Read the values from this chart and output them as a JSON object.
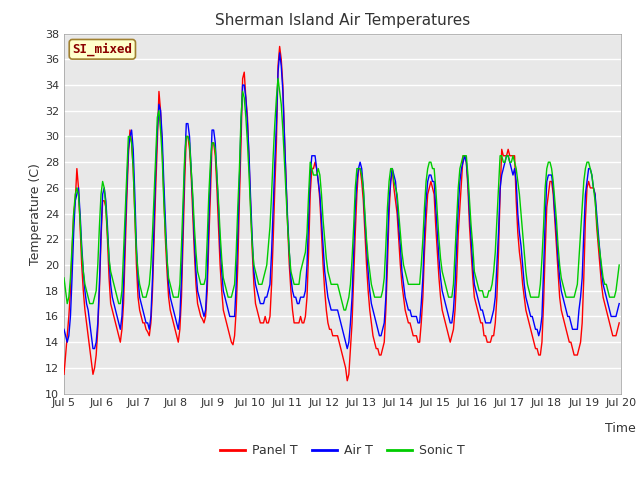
{
  "title": "Sherman Island Air Temperatures",
  "xlabel": "Time",
  "ylabel": "Temperature (C)",
  "ylim": [
    10,
    38
  ],
  "yticks": [
    10,
    12,
    14,
    16,
    18,
    20,
    22,
    24,
    26,
    28,
    30,
    32,
    34,
    36,
    38
  ],
  "xtick_labels": [
    "Jul 5",
    "Jul 6",
    "Jul 7",
    "Jul 8",
    "Jul 9",
    "Jul 10",
    "Jul 11",
    "Jul 12",
    "Jul 13",
    "Jul 14",
    "Jul 15",
    "Jul 16",
    "Jul 17",
    "Jul 18",
    "Jul 19",
    "Jul 20"
  ],
  "xtick_days": [
    5,
    6,
    7,
    8,
    9,
    10,
    11,
    12,
    13,
    14,
    15,
    16,
    17,
    18,
    19,
    20
  ],
  "label_box_text": "SI_mixed",
  "label_box_color": "#ffffcc",
  "label_box_edge_color": "#a08030",
  "label_box_text_color": "#8b0000",
  "bg_color": "#e8e8e8",
  "panel_t_color": "#ff0000",
  "air_t_color": "#0000ff",
  "sonic_t_color": "#00cc00",
  "legend_entries": [
    "Panel T",
    "Air T",
    "Sonic T"
  ],
  "linewidth": 1.0,
  "panel_t": [
    11.5,
    13.0,
    14.5,
    16.0,
    18.0,
    21.0,
    24.0,
    25.0,
    27.5,
    26.0,
    23.0,
    20.0,
    18.0,
    16.5,
    15.5,
    14.5,
    13.5,
    12.5,
    11.5,
    12.0,
    13.0,
    15.0,
    18.0,
    22.0,
    25.0,
    25.0,
    24.5,
    22.0,
    19.0,
    17.0,
    16.5,
    16.0,
    15.5,
    15.0,
    14.5,
    14.0,
    15.0,
    17.0,
    21.0,
    25.0,
    28.5,
    30.5,
    29.5,
    27.5,
    24.0,
    20.0,
    17.5,
    16.5,
    16.0,
    15.5,
    15.5,
    15.0,
    14.8,
    14.5,
    15.5,
    18.0,
    22.0,
    26.0,
    29.5,
    33.5,
    32.0,
    29.0,
    25.5,
    22.0,
    19.5,
    17.5,
    16.5,
    16.0,
    15.5,
    15.0,
    14.5,
    14.0,
    15.0,
    17.5,
    22.0,
    26.5,
    30.0,
    30.0,
    29.0,
    27.0,
    24.0,
    21.0,
    18.5,
    17.0,
    16.5,
    16.0,
    15.8,
    15.5,
    16.0,
    18.0,
    22.0,
    25.5,
    29.5,
    29.5,
    28.5,
    26.0,
    23.0,
    20.0,
    18.0,
    16.5,
    16.0,
    15.5,
    15.0,
    14.5,
    14.0,
    13.8,
    14.5,
    16.5,
    20.0,
    25.0,
    29.5,
    34.5,
    35.0,
    33.0,
    31.5,
    28.0,
    24.5,
    21.0,
    18.5,
    17.0,
    16.5,
    16.0,
    15.5,
    15.5,
    15.5,
    16.0,
    15.5,
    15.5,
    16.0,
    18.5,
    22.0,
    26.0,
    29.5,
    35.5,
    37.0,
    36.0,
    34.0,
    30.0,
    26.5,
    23.0,
    20.0,
    18.0,
    16.5,
    15.5,
    15.5,
    15.5,
    15.5,
    16.0,
    15.5,
    15.5,
    16.0,
    17.5,
    21.0,
    25.5,
    27.5,
    27.5,
    28.0,
    27.5,
    26.5,
    25.0,
    22.5,
    20.0,
    18.0,
    16.5,
    15.5,
    15.0,
    15.0,
    14.5,
    14.5,
    14.5,
    14.5,
    14.0,
    13.5,
    13.0,
    12.5,
    12.0,
    11.0,
    11.5,
    13.5,
    15.5,
    19.0,
    22.5,
    25.5,
    27.5,
    27.5,
    26.5,
    25.0,
    22.5,
    20.0,
    18.0,
    16.5,
    15.5,
    14.5,
    14.0,
    13.5,
    13.5,
    13.0,
    13.0,
    13.5,
    14.0,
    16.5,
    20.0,
    24.0,
    26.5,
    27.5,
    26.0,
    25.0,
    24.0,
    22.0,
    20.0,
    18.5,
    17.5,
    16.5,
    16.0,
    15.5,
    15.5,
    15.0,
    14.5,
    14.5,
    14.5,
    14.0,
    14.0,
    15.5,
    17.5,
    21.0,
    23.5,
    25.5,
    26.0,
    26.5,
    26.0,
    25.5,
    23.0,
    21.0,
    19.0,
    17.5,
    16.5,
    16.0,
    15.5,
    15.0,
    14.5,
    14.0,
    14.5,
    15.0,
    16.5,
    19.0,
    22.5,
    24.5,
    26.5,
    28.5,
    28.5,
    28.0,
    26.0,
    23.0,
    21.0,
    19.0,
    17.5,
    17.0,
    16.5,
    16.0,
    15.5,
    15.5,
    14.5,
    14.5,
    14.0,
    14.0,
    14.0,
    14.5,
    14.5,
    15.5,
    17.5,
    21.0,
    25.5,
    29.0,
    28.5,
    28.5,
    28.5,
    29.0,
    28.5,
    28.5,
    28.5,
    28.5,
    25.0,
    22.5,
    21.0,
    20.0,
    18.5,
    17.5,
    16.5,
    16.0,
    15.5,
    15.0,
    14.5,
    14.0,
    13.5,
    13.5,
    13.0,
    13.0,
    14.0,
    17.0,
    21.0,
    24.5,
    25.5,
    26.5,
    26.5,
    25.5,
    23.5,
    21.5,
    19.5,
    17.5,
    16.5,
    16.0,
    15.5,
    15.0,
    14.5,
    14.0,
    14.0,
    13.5,
    13.0,
    13.0,
    13.0,
    13.5,
    14.0,
    15.5,
    19.0,
    23.5,
    26.0,
    26.5,
    26.0,
    26.0,
    26.0,
    25.5,
    23.0,
    21.5,
    20.0,
    18.5,
    17.5,
    17.0,
    16.5,
    16.0,
    15.5,
    15.0,
    14.5,
    14.5,
    14.5,
    15.0,
    15.5
  ],
  "air_t": [
    15.0,
    14.5,
    14.0,
    14.5,
    16.0,
    19.0,
    22.5,
    25.0,
    25.5,
    26.0,
    24.0,
    21.5,
    19.5,
    18.0,
    17.0,
    16.5,
    15.5,
    14.5,
    13.5,
    13.5,
    14.0,
    15.5,
    18.5,
    22.5,
    25.5,
    26.0,
    25.0,
    23.0,
    20.5,
    18.5,
    17.5,
    17.0,
    16.5,
    16.0,
    15.5,
    15.0,
    16.0,
    18.5,
    22.5,
    26.0,
    29.0,
    30.0,
    30.5,
    29.0,
    25.5,
    21.5,
    19.0,
    17.5,
    17.0,
    16.5,
    16.0,
    15.5,
    15.5,
    15.0,
    16.0,
    19.0,
    23.5,
    27.5,
    30.5,
    32.5,
    32.0,
    30.0,
    26.5,
    23.5,
    20.5,
    18.5,
    17.5,
    17.0,
    16.5,
    16.0,
    15.5,
    15.0,
    16.0,
    19.0,
    23.5,
    28.0,
    31.0,
    31.0,
    30.0,
    27.5,
    25.0,
    22.0,
    19.5,
    18.0,
    17.5,
    17.0,
    16.5,
    16.0,
    16.5,
    19.0,
    23.5,
    27.0,
    30.5,
    30.5,
    29.5,
    27.0,
    24.5,
    21.5,
    19.5,
    18.0,
    17.5,
    17.0,
    16.5,
    16.0,
    16.0,
    16.0,
    16.0,
    18.5,
    22.5,
    26.5,
    31.0,
    34.0,
    34.0,
    33.0,
    31.0,
    28.5,
    25.0,
    22.0,
    19.5,
    18.5,
    18.0,
    17.5,
    17.0,
    17.0,
    17.0,
    17.5,
    17.5,
    18.0,
    18.5,
    21.0,
    24.5,
    28.0,
    31.0,
    35.0,
    36.5,
    35.5,
    33.5,
    30.0,
    26.5,
    23.5,
    21.0,
    19.0,
    18.0,
    17.5,
    17.5,
    17.0,
    17.0,
    17.5,
    17.5,
    17.5,
    18.0,
    20.0,
    23.5,
    27.0,
    28.5,
    28.5,
    28.5,
    27.5,
    26.5,
    25.5,
    23.5,
    21.5,
    19.5,
    18.5,
    17.5,
    17.0,
    16.5,
    16.5,
    16.5,
    16.5,
    16.5,
    16.0,
    15.5,
    15.0,
    14.5,
    14.0,
    13.5,
    14.0,
    15.5,
    17.5,
    21.0,
    24.5,
    26.5,
    27.5,
    28.0,
    27.5,
    26.0,
    23.5,
    21.5,
    19.5,
    18.0,
    17.0,
    16.5,
    16.0,
    15.5,
    15.0,
    14.5,
    14.5,
    15.0,
    15.5,
    17.5,
    21.5,
    25.0,
    26.5,
    27.5,
    27.0,
    26.5,
    25.0,
    23.0,
    21.5,
    19.5,
    18.5,
    17.5,
    17.0,
    16.5,
    16.5,
    16.0,
    16.0,
    16.0,
    16.0,
    15.5,
    15.5,
    17.0,
    19.0,
    22.5,
    25.0,
    26.5,
    27.0,
    27.0,
    26.5,
    26.5,
    24.5,
    22.5,
    20.5,
    19.0,
    18.0,
    17.5,
    17.0,
    16.5,
    16.0,
    15.5,
    15.5,
    16.5,
    18.5,
    21.5,
    24.5,
    26.5,
    27.5,
    28.0,
    28.5,
    28.0,
    26.5,
    24.0,
    22.0,
    20.0,
    18.5,
    18.0,
    17.5,
    17.0,
    16.5,
    16.5,
    16.0,
    15.5,
    15.5,
    15.5,
    15.5,
    16.0,
    16.5,
    17.5,
    20.0,
    22.5,
    26.0,
    27.0,
    27.5,
    28.0,
    28.5,
    28.5,
    28.0,
    27.5,
    27.0,
    27.5,
    26.5,
    24.0,
    22.5,
    21.5,
    20.0,
    18.5,
    17.5,
    17.0,
    16.5,
    16.0,
    16.0,
    15.5,
    15.0,
    15.0,
    14.5,
    15.0,
    16.0,
    19.5,
    23.5,
    26.5,
    27.0,
    27.0,
    27.0,
    26.0,
    24.0,
    22.5,
    20.5,
    19.0,
    18.0,
    17.5,
    17.0,
    16.5,
    16.0,
    16.0,
    15.5,
    15.0,
    15.0,
    15.0,
    15.0,
    16.5,
    17.5,
    19.0,
    22.5,
    25.5,
    26.5,
    27.5,
    27.5,
    27.0,
    26.0,
    25.5,
    24.0,
    22.5,
    21.0,
    19.5,
    18.5,
    18.0,
    17.5,
    17.0,
    16.5,
    16.0,
    16.0,
    16.0,
    16.0,
    16.5,
    17.0
  ],
  "sonic_t": [
    19.0,
    18.0,
    17.0,
    17.5,
    19.0,
    21.5,
    24.0,
    25.5,
    26.0,
    25.5,
    23.5,
    21.0,
    19.5,
    18.5,
    18.0,
    17.5,
    17.0,
    17.0,
    17.0,
    17.5,
    18.0,
    20.0,
    23.0,
    25.5,
    26.5,
    26.0,
    24.5,
    22.5,
    20.5,
    19.5,
    19.0,
    18.5,
    18.0,
    17.5,
    17.0,
    17.0,
    18.0,
    21.0,
    24.0,
    27.0,
    30.0,
    30.0,
    29.5,
    27.5,
    24.0,
    21.0,
    19.5,
    18.5,
    18.0,
    17.5,
    17.5,
    17.5,
    18.0,
    18.5,
    20.0,
    22.5,
    25.5,
    28.5,
    31.5,
    32.0,
    30.5,
    28.5,
    25.0,
    22.5,
    20.5,
    19.0,
    18.5,
    18.0,
    17.5,
    17.5,
    17.5,
    17.5,
    18.5,
    21.5,
    25.0,
    28.5,
    30.0,
    30.0,
    29.5,
    27.5,
    25.5,
    23.0,
    21.0,
    19.5,
    19.0,
    18.5,
    18.5,
    18.5,
    19.0,
    22.0,
    25.5,
    28.0,
    29.5,
    29.5,
    29.0,
    27.0,
    25.0,
    22.5,
    20.5,
    19.0,
    18.5,
    18.0,
    17.5,
    17.5,
    17.5,
    18.0,
    18.5,
    21.0,
    24.5,
    27.5,
    31.5,
    33.5,
    33.0,
    31.5,
    29.5,
    27.0,
    24.0,
    21.5,
    20.0,
    19.5,
    19.0,
    18.5,
    18.5,
    18.5,
    19.0,
    19.5,
    20.0,
    21.5,
    23.0,
    25.5,
    28.5,
    31.0,
    33.0,
    34.5,
    33.5,
    32.5,
    30.5,
    28.0,
    25.5,
    23.0,
    21.0,
    19.5,
    19.0,
    18.5,
    18.5,
    18.5,
    18.5,
    19.5,
    20.0,
    20.5,
    21.0,
    22.5,
    25.5,
    28.0,
    27.5,
    27.0,
    27.0,
    27.0,
    27.5,
    27.0,
    25.5,
    23.5,
    22.0,
    20.5,
    19.5,
    19.0,
    18.5,
    18.5,
    18.5,
    18.5,
    18.5,
    18.0,
    17.5,
    17.0,
    16.5,
    16.5,
    17.0,
    17.5,
    18.5,
    20.5,
    23.0,
    26.0,
    27.5,
    27.5,
    27.5,
    27.0,
    26.0,
    24.0,
    22.0,
    20.5,
    19.5,
    18.5,
    18.0,
    17.5,
    17.5,
    17.5,
    17.5,
    17.5,
    18.0,
    19.0,
    21.5,
    24.5,
    26.5,
    27.5,
    27.5,
    26.5,
    26.0,
    25.5,
    24.0,
    22.5,
    21.0,
    20.0,
    19.5,
    19.0,
    18.5,
    18.5,
    18.5,
    18.5,
    18.5,
    18.5,
    18.5,
    18.5,
    20.0,
    22.0,
    24.5,
    26.5,
    27.5,
    28.0,
    28.0,
    27.5,
    27.5,
    26.0,
    24.0,
    22.0,
    20.5,
    19.5,
    19.0,
    18.5,
    18.0,
    17.5,
    17.5,
    17.5,
    18.5,
    21.0,
    23.5,
    26.0,
    27.5,
    28.0,
    28.5,
    28.5,
    28.5,
    27.0,
    25.0,
    23.0,
    21.5,
    19.5,
    19.0,
    18.5,
    18.0,
    18.0,
    18.0,
    17.5,
    17.5,
    17.5,
    18.0,
    18.0,
    18.5,
    19.5,
    21.0,
    23.5,
    26.0,
    28.5,
    28.5,
    28.0,
    28.0,
    28.5,
    28.5,
    28.0,
    28.0,
    28.5,
    28.0,
    27.5,
    26.5,
    25.5,
    24.0,
    22.5,
    21.0,
    19.5,
    18.5,
    18.0,
    17.5,
    17.5,
    17.5,
    17.5,
    17.5,
    17.5,
    18.5,
    20.5,
    23.0,
    26.0,
    27.5,
    28.0,
    28.0,
    27.5,
    26.5,
    25.0,
    23.5,
    21.5,
    20.0,
    19.0,
    18.5,
    18.0,
    17.5,
    17.5,
    17.5,
    17.5,
    17.5,
    17.5,
    18.0,
    18.5,
    20.5,
    22.5,
    24.5,
    26.5,
    27.5,
    28.0,
    28.0,
    27.5,
    27.0,
    26.0,
    25.0,
    23.5,
    22.0,
    21.0,
    20.0,
    19.0,
    18.5,
    18.5,
    18.0,
    17.5,
    17.5,
    17.5,
    17.5,
    18.0,
    19.0,
    20.0
  ]
}
